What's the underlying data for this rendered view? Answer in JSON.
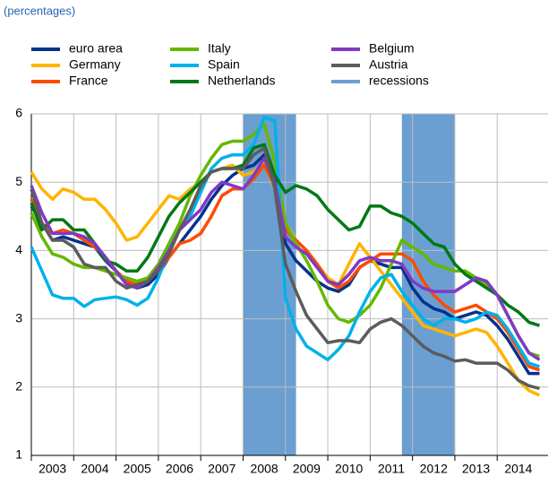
{
  "chart_data": {
    "type": "line",
    "subtitle": "(percentages)",
    "x": [
      2003,
      2003.25,
      2003.5,
      2003.75,
      2004,
      2004.25,
      2004.5,
      2004.75,
      2005,
      2005.25,
      2005.5,
      2005.75,
      2006,
      2006.25,
      2006.5,
      2006.75,
      2007,
      2007.25,
      2007.5,
      2007.75,
      2008,
      2008.25,
      2008.5,
      2008.75,
      2009,
      2009.25,
      2009.5,
      2009.75,
      2010,
      2010.25,
      2010.5,
      2010.75,
      2011,
      2011.25,
      2011.5,
      2011.75,
      2012,
      2012.25,
      2012.5,
      2012.75,
      2013,
      2013.25,
      2013.5,
      2013.75,
      2014,
      2014.25,
      2014.5,
      2014.75,
      2015
    ],
    "xlim": [
      2003,
      2015.2
    ],
    "xticks": [
      {
        "value": 2003.5,
        "label": "2003"
      },
      {
        "value": 2004.5,
        "label": "2004"
      },
      {
        "value": 2005.5,
        "label": "2005"
      },
      {
        "value": 2006.5,
        "label": "2006"
      },
      {
        "value": 2007.5,
        "label": "2007"
      },
      {
        "value": 2008.5,
        "label": "2008"
      },
      {
        "value": 2009.5,
        "label": "2009"
      },
      {
        "value": 2010.5,
        "label": "2010"
      },
      {
        "value": 2011.5,
        "label": "2011"
      },
      {
        "value": 2012.5,
        "label": "2012"
      },
      {
        "value": 2013.5,
        "label": "2013"
      },
      {
        "value": 2014.5,
        "label": "2014"
      }
    ],
    "ylim": [
      1,
      6
    ],
    "yticks": [
      1,
      2,
      3,
      4,
      5,
      6
    ],
    "grid": true,
    "legend": "top",
    "recessions": {
      "name": "recessions",
      "color": "#6b9fd1",
      "periods": [
        [
          2008,
          2009.25
        ],
        [
          2011.75,
          2013
        ]
      ]
    },
    "series": [
      {
        "name": "euro area",
        "color": "#00338d",
        "values": [
          4.65,
          4.4,
          4.15,
          4.2,
          4.15,
          4.1,
          4.05,
          3.85,
          3.7,
          3.55,
          3.45,
          3.5,
          3.65,
          3.9,
          4.1,
          4.3,
          4.5,
          4.75,
          4.95,
          5.1,
          5.2,
          5.25,
          5.4,
          5.1,
          4.1,
          3.85,
          3.7,
          3.55,
          3.45,
          3.4,
          3.5,
          3.75,
          3.85,
          3.8,
          3.75,
          3.75,
          3.45,
          3.25,
          3.15,
          3.1,
          3.0,
          3.05,
          3.1,
          3.05,
          2.9,
          2.7,
          2.45,
          2.2,
          2.2
        ]
      },
      {
        "name": "Germany",
        "color": "#ffb400",
        "values": [
          5.15,
          4.9,
          4.75,
          4.9,
          4.85,
          4.75,
          4.75,
          4.6,
          4.4,
          4.15,
          4.2,
          4.4,
          4.6,
          4.8,
          4.75,
          4.9,
          5.0,
          5.15,
          5.2,
          5.25,
          5.1,
          5.15,
          5.3,
          4.9,
          4.4,
          4.15,
          4.0,
          3.8,
          3.6,
          3.5,
          3.8,
          4.1,
          3.9,
          3.7,
          3.5,
          3.3,
          3.1,
          2.9,
          2.85,
          2.8,
          2.75,
          2.8,
          2.85,
          2.8,
          2.6,
          2.35,
          2.1,
          1.95,
          1.88
        ]
      },
      {
        "name": "France",
        "color": "#ff4b00",
        "values": [
          4.75,
          4.4,
          4.25,
          4.3,
          4.25,
          4.15,
          4.05,
          3.9,
          3.7,
          3.55,
          3.5,
          3.6,
          3.7,
          3.9,
          4.1,
          4.15,
          4.25,
          4.5,
          4.8,
          4.9,
          4.9,
          5.05,
          5.25,
          4.95,
          4.3,
          4.15,
          4.0,
          3.8,
          3.55,
          3.45,
          3.55,
          3.75,
          3.85,
          3.95,
          3.95,
          3.95,
          3.85,
          3.55,
          3.35,
          3.2,
          3.1,
          3.15,
          3.2,
          3.1,
          3.0,
          2.8,
          2.55,
          2.3,
          2.25
        ]
      },
      {
        "name": "Italy",
        "color": "#65b800",
        "values": [
          4.55,
          4.2,
          3.95,
          3.9,
          3.8,
          3.75,
          3.75,
          3.7,
          3.65,
          3.6,
          3.55,
          3.6,
          3.8,
          4.1,
          4.4,
          4.8,
          5.1,
          5.35,
          5.55,
          5.6,
          5.6,
          5.7,
          5.85,
          5.3,
          4.4,
          4.1,
          3.85,
          3.55,
          3.2,
          3.0,
          2.95,
          3.05,
          3.2,
          3.45,
          3.8,
          4.15,
          4.05,
          3.95,
          3.8,
          3.75,
          3.7,
          3.7,
          3.6,
          3.5,
          3.35,
          3.05,
          2.75,
          2.5,
          2.45
        ]
      },
      {
        "name": "Spain",
        "color": "#00b1ea",
        "values": [
          4.05,
          3.7,
          3.35,
          3.3,
          3.3,
          3.18,
          3.28,
          3.3,
          3.32,
          3.28,
          3.2,
          3.3,
          3.6,
          4.0,
          4.3,
          4.5,
          4.85,
          5.2,
          5.35,
          5.4,
          5.4,
          5.55,
          5.95,
          5.9,
          3.3,
          2.85,
          2.6,
          2.5,
          2.4,
          2.55,
          2.75,
          3.1,
          3.4,
          3.6,
          3.65,
          3.4,
          3.2,
          3.0,
          2.9,
          3.0,
          3.0,
          2.95,
          3.0,
          3.1,
          3.05,
          2.85,
          2.6,
          2.35,
          2.3
        ]
      },
      {
        "name": "Netherlands",
        "color": "#007816",
        "values": [
          4.7,
          4.3,
          4.45,
          4.45,
          4.3,
          4.3,
          4.1,
          3.85,
          3.8,
          3.7,
          3.7,
          3.9,
          4.2,
          4.5,
          4.7,
          4.85,
          5.0,
          5.15,
          5.2,
          5.2,
          5.25,
          5.5,
          5.55,
          5.1,
          4.85,
          4.95,
          4.9,
          4.8,
          4.6,
          4.45,
          4.3,
          4.35,
          4.65,
          4.65,
          4.55,
          4.5,
          4.4,
          4.25,
          4.1,
          4.05,
          3.8,
          3.65,
          3.55,
          3.45,
          3.35,
          3.2,
          3.1,
          2.95,
          2.9
        ]
      },
      {
        "name": "Belgium",
        "color": "#8139c6",
        "values": [
          4.95,
          4.55,
          4.25,
          4.25,
          4.25,
          4.2,
          4.1,
          3.9,
          3.7,
          3.5,
          3.45,
          3.55,
          3.75,
          4.0,
          4.3,
          4.45,
          4.6,
          4.85,
          5.0,
          4.95,
          4.9,
          5.1,
          5.35,
          5.0,
          4.2,
          4.05,
          3.95,
          3.75,
          3.55,
          3.5,
          3.65,
          3.85,
          3.9,
          3.85,
          3.85,
          3.8,
          3.55,
          3.45,
          3.4,
          3.4,
          3.4,
          3.5,
          3.6,
          3.55,
          3.35,
          3.05,
          2.75,
          2.5,
          2.4
        ]
      },
      {
        "name": "Austria",
        "color": "#5c5c5c",
        "values": [
          4.9,
          4.4,
          4.15,
          4.15,
          4.05,
          3.8,
          3.75,
          3.75,
          3.55,
          3.45,
          3.5,
          3.55,
          3.7,
          3.95,
          4.3,
          4.6,
          4.95,
          5.15,
          5.2,
          5.2,
          5.2,
          5.4,
          5.5,
          4.9,
          3.8,
          3.4,
          3.05,
          2.85,
          2.65,
          2.68,
          2.68,
          2.65,
          2.85,
          2.95,
          3.0,
          2.9,
          2.75,
          2.6,
          2.5,
          2.45,
          2.38,
          2.4,
          2.35,
          2.35,
          2.35,
          2.25,
          2.1,
          2.02,
          1.98
        ]
      }
    ]
  }
}
